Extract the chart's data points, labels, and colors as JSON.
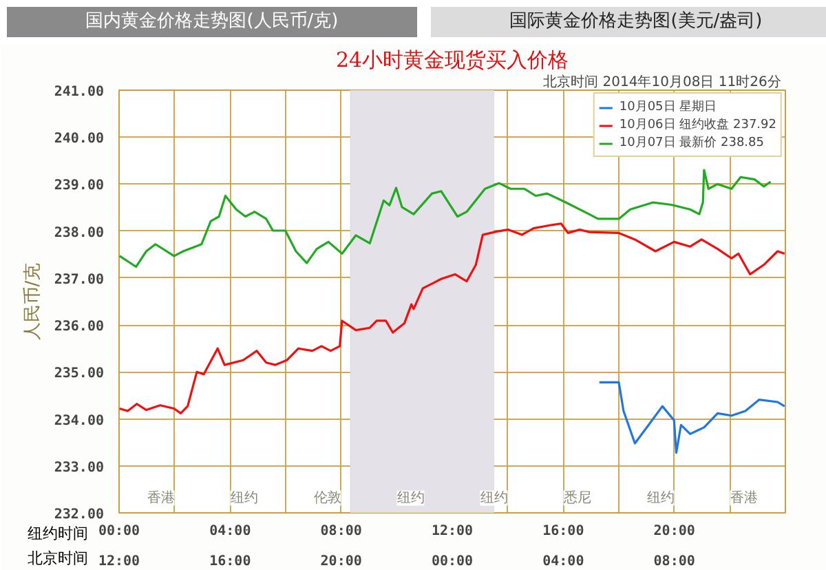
{
  "chart_data": {
    "type": "line",
    "title": "24小时黄金现货买入价格",
    "subtitle": "北京时间  2014年10月08日 11时26分",
    "xlabel": "纽约时间",
    "x2label": "北京时间",
    "ylabel": "人民币/克",
    "annotations": [
      "国内黄金价格走势图(人民币/克)",
      "国际黄金价格走势图(美元/盎司)",
      "香港",
      "纽约",
      "伦敦",
      "纽约",
      "纽约",
      "悉尼",
      "纽约",
      "香港"
    ],
    "xlim": [
      0,
      24
    ],
    "ylim": [
      232,
      241
    ],
    "xticks": [
      {
        "value": 0,
        "label": "00:00"
      },
      {
        "value": 2,
        "label": null
      },
      {
        "value": 4,
        "label": "04:00"
      },
      {
        "value": 6,
        "label": null
      },
      {
        "value": 8,
        "label": "08:00"
      },
      {
        "value": 10,
        "label": null
      },
      {
        "value": 12,
        "label": "12:00"
      },
      {
        "value": 14,
        "label": null
      },
      {
        "value": 16,
        "label": "16:00"
      },
      {
        "value": 18,
        "label": null
      },
      {
        "value": 20,
        "label": "20:00"
      },
      {
        "value": 22,
        "label": null
      }
    ],
    "x2lim": [
      "2014-10-07T12:00",
      "2014-10-08T12:00"
    ],
    "x2ticks": [
      {
        "value": "2014-10-07T12:00",
        "label": "12:00"
      },
      {
        "value": "2014-10-07T16:00",
        "label": "16:00"
      },
      {
        "value": "2014-10-07T20:00",
        "label": "20:00"
      },
      {
        "value": "2014-10-08T00:00",
        "label": "00:00"
      },
      {
        "value": "2014-10-08T04:00",
        "label": "04:00"
      },
      {
        "value": "2014-10-08T08:00",
        "label": "08:00"
      }
    ],
    "yticks": [
      {
        "value": 232,
        "label": "232.00"
      },
      {
        "value": 233,
        "label": "233.00"
      },
      {
        "value": 234,
        "label": "234.00"
      },
      {
        "value": 235,
        "label": "235.00"
      },
      {
        "value": 236,
        "label": "236.00"
      },
      {
        "value": 237,
        "label": "237.00"
      },
      {
        "value": 238,
        "label": "238.00"
      },
      {
        "value": 239,
        "label": "239.00"
      },
      {
        "value": 240,
        "label": "240.00"
      },
      {
        "value": 241,
        "label": "241.00"
      }
    ],
    "grid": true,
    "legend": "top right",
    "marker": "none",
    "line_style": "solid",
    "bands": [
      {
        "axis": "x",
        "from": 8.33,
        "to": 13.5,
        "color": "#e4e1e8"
      }
    ],
    "series": [
      {
        "name": "10月05日 星期日",
        "color": "#2277dd",
        "x": [
          17.3,
          18.0,
          18.17,
          18.58,
          19.07,
          19.57,
          19.99,
          20.07,
          20.24,
          20.57,
          21.07,
          21.56,
          22.06,
          22.56,
          23.06,
          23.72,
          23.97
        ],
        "values": [
          234.78,
          234.78,
          234.17,
          233.48,
          233.87,
          234.27,
          233.97,
          233.28,
          233.87,
          233.68,
          233.82,
          234.12,
          234.07,
          234.17,
          234.41,
          234.36,
          234.27
        ]
      },
      {
        "name": "10月06日 纽约收盘 237.92",
        "color": "#ee1111",
        "x": [
          0.02,
          0.31,
          0.64,
          0.98,
          1.48,
          1.98,
          2.22,
          2.47,
          2.8,
          3.05,
          3.55,
          3.8,
          4.47,
          4.96,
          5.3,
          5.63,
          6.04,
          6.46,
          6.96,
          7.29,
          7.62,
          7.95,
          8.03,
          8.53,
          9.03,
          9.28,
          9.61,
          9.86,
          10.28,
          10.53,
          10.61,
          10.94,
          11.27,
          11.6,
          12.1,
          12.52,
          12.85,
          13.1,
          13.6,
          14.01,
          14.51,
          14.93,
          15.59,
          15.92,
          16.17,
          16.59,
          16.93,
          18.0,
          18.58,
          19.32,
          19.99,
          20.57,
          20.98,
          21.56,
          22.06,
          22.31,
          22.73,
          23.22,
          23.72,
          23.97
        ],
        "values": [
          234.22,
          234.17,
          234.32,
          234.19,
          234.29,
          234.22,
          234.12,
          234.27,
          235.0,
          234.95,
          235.5,
          235.15,
          235.25,
          235.45,
          235.2,
          235.15,
          235.25,
          235.5,
          235.45,
          235.55,
          235.45,
          235.55,
          236.09,
          235.89,
          235.94,
          236.09,
          236.09,
          235.84,
          236.04,
          236.44,
          236.34,
          236.78,
          236.88,
          236.98,
          237.08,
          236.93,
          237.28,
          237.92,
          237.99,
          238.03,
          237.92,
          238.06,
          238.13,
          238.16,
          237.96,
          238.03,
          237.98,
          237.96,
          237.82,
          237.57,
          237.77,
          237.67,
          237.82,
          237.62,
          237.42,
          237.52,
          237.08,
          237.28,
          237.57,
          237.52
        ]
      },
      {
        "name": "10月07日 最新价 238.85",
        "color": "#22aa22",
        "x": [
          0.02,
          0.61,
          0.98,
          1.31,
          1.98,
          2.31,
          2.97,
          3.3,
          3.6,
          3.83,
          4.22,
          4.55,
          4.88,
          5.3,
          5.54,
          5.99,
          6.37,
          6.76,
          7.12,
          7.54,
          8.03,
          8.53,
          9.03,
          9.53,
          9.74,
          9.98,
          10.19,
          10.61,
          11.27,
          11.6,
          12.19,
          12.52,
          13.18,
          13.69,
          14.1,
          14.6,
          15.01,
          15.42,
          16.09,
          16.93,
          17.25,
          18.0,
          18.41,
          19.24,
          19.9,
          20.57,
          20.9,
          21.03,
          21.07,
          21.23,
          21.56,
          22.06,
          22.39,
          22.89,
          23.22,
          23.47
        ],
        "values": [
          237.47,
          237.24,
          237.57,
          237.72,
          237.47,
          237.57,
          237.72,
          238.21,
          238.31,
          238.75,
          238.46,
          238.31,
          238.41,
          238.26,
          238.01,
          238.01,
          237.57,
          237.32,
          237.62,
          237.77,
          237.52,
          237.91,
          237.74,
          238.65,
          238.55,
          238.92,
          238.51,
          238.36,
          238.8,
          238.85,
          238.31,
          238.41,
          238.9,
          239.02,
          238.9,
          238.9,
          238.75,
          238.8,
          238.61,
          238.36,
          238.26,
          238.26,
          238.46,
          238.61,
          238.56,
          238.46,
          238.36,
          238.61,
          239.3,
          238.9,
          239.0,
          238.9,
          239.15,
          239.1,
          238.95,
          239.05
        ]
      }
    ]
  }
}
